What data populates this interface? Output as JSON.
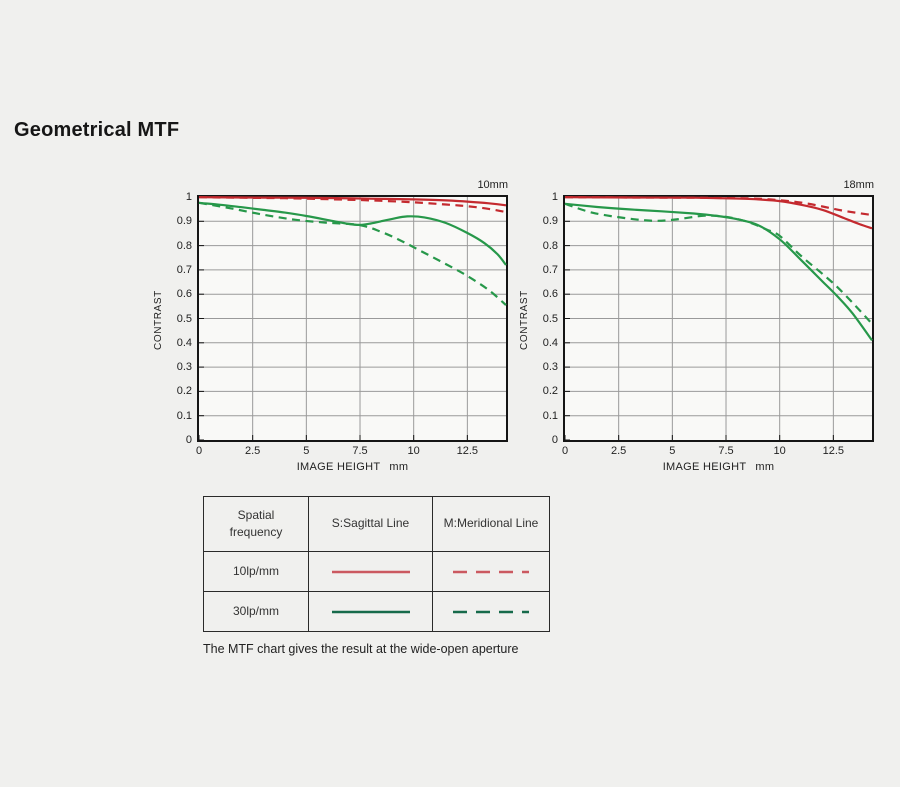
{
  "page": {
    "title": "Geometrical MTF",
    "note": "The MTF chart gives the result at the wide-open aperture"
  },
  "colors": {
    "red": "#c42a2f",
    "green": "#27984a",
    "legend_red": "#cb5960",
    "legend_green": "#166a4a",
    "grid": "#9a9a9a",
    "border": "#151515",
    "plot_bg": "#f9f9f7"
  },
  "legend": {
    "headers": [
      "Spatial frequency",
      "S:Sagittal Line",
      "M:Meridional Line"
    ],
    "rows": [
      {
        "label": "10lp/mm",
        "color": "legend_red"
      },
      {
        "label": "30lp/mm",
        "color": "legend_green"
      }
    ]
  },
  "chart_data": [
    {
      "type": "line",
      "title": "10mm",
      "xlabel": "IMAGE HEIGHT",
      "x_unit": "mm",
      "ylabel": "CONTRAST",
      "xlim": [
        0,
        14.3
      ],
      "ylim": [
        0,
        1
      ],
      "grid": true,
      "x_ticks": [
        "0",
        "2.5",
        "5",
        "7.5",
        "10",
        "12.5"
      ],
      "y_ticks": [
        "1",
        "0.9",
        "0.8",
        "0.7",
        "0.6",
        "0.5",
        "0.4",
        "0.3",
        "0.2",
        "0.1",
        "0"
      ],
      "series": [
        {
          "id": "10lpmm-sagittal",
          "name": "10lp/mm S (Sagittal)",
          "color": "red",
          "style": "solid",
          "points": [
            [
              0,
              0.999
            ],
            [
              2,
              0.998
            ],
            [
              4,
              0.997
            ],
            [
              6,
              0.996
            ],
            [
              8,
              0.993
            ],
            [
              10,
              0.99
            ],
            [
              11.5,
              0.986
            ],
            [
              12.5,
              0.981
            ],
            [
              13.5,
              0.974
            ],
            [
              14.3,
              0.966
            ]
          ]
        },
        {
          "id": "10lpmm-meridional",
          "name": "10lp/mm M (Meridional)",
          "color": "red",
          "style": "dashed",
          "points": [
            [
              0,
              0.999
            ],
            [
              2,
              0.997
            ],
            [
              4,
              0.995
            ],
            [
              6,
              0.991
            ],
            [
              8,
              0.986
            ],
            [
              10,
              0.978
            ],
            [
              11.5,
              0.969
            ],
            [
              12.5,
              0.962
            ],
            [
              13.5,
              0.951
            ],
            [
              14.3,
              0.938
            ]
          ]
        },
        {
          "id": "30lpmm-sagittal",
          "name": "30lp/mm S (Sagittal)",
          "color": "green",
          "style": "solid",
          "points": [
            [
              0,
              0.976
            ],
            [
              1,
              0.968
            ],
            [
              2,
              0.958
            ],
            [
              3,
              0.947
            ],
            [
              4,
              0.936
            ],
            [
              5,
              0.922
            ],
            [
              6,
              0.905
            ],
            [
              7,
              0.889
            ],
            [
              7.5,
              0.885
            ],
            [
              8,
              0.891
            ],
            [
              9,
              0.91
            ],
            [
              9.7,
              0.92
            ],
            [
              10.5,
              0.916
            ],
            [
              11.5,
              0.893
            ],
            [
              12.5,
              0.852
            ],
            [
              13.3,
              0.81
            ],
            [
              13.9,
              0.765
            ],
            [
              14.3,
              0.72
            ]
          ]
        },
        {
          "id": "30lpmm-meridional",
          "name": "30lp/mm M (Meridional)",
          "color": "green",
          "style": "dashed",
          "points": [
            [
              0,
              0.976
            ],
            [
              1.5,
              0.953
            ],
            [
              3,
              0.927
            ],
            [
              4.5,
              0.906
            ],
            [
              6,
              0.894
            ],
            [
              7.5,
              0.884
            ],
            [
              8.5,
              0.856
            ],
            [
              9.5,
              0.816
            ],
            [
              10.5,
              0.77
            ],
            [
              11.5,
              0.724
            ],
            [
              12.5,
              0.675
            ],
            [
              13.5,
              0.617
            ],
            [
              14.3,
              0.555
            ]
          ]
        }
      ]
    },
    {
      "type": "line",
      "title": "18mm",
      "xlabel": "IMAGE HEIGHT",
      "x_unit": "mm",
      "ylabel": "CONTRAST",
      "xlim": [
        0,
        14.3
      ],
      "ylim": [
        0,
        1
      ],
      "grid": true,
      "x_ticks": [
        "0",
        "2.5",
        "5",
        "7.5",
        "10",
        "12.5"
      ],
      "y_ticks": [
        "1",
        "0.9",
        "0.8",
        "0.7",
        "0.6",
        "0.5",
        "0.4",
        "0.3",
        "0.2",
        "0.1",
        "0"
      ],
      "series": [
        {
          "id": "10lpmm-sagittal",
          "name": "10lp/mm S (Sagittal)",
          "color": "red",
          "style": "solid",
          "points": [
            [
              0,
              0.999
            ],
            [
              3,
              0.998
            ],
            [
              6,
              0.997
            ],
            [
              8,
              0.994
            ],
            [
              9,
              0.99
            ],
            [
              10,
              0.983
            ],
            [
              11,
              0.968
            ],
            [
              12,
              0.947
            ],
            [
              13,
              0.913
            ],
            [
              13.7,
              0.889
            ],
            [
              14.3,
              0.871
            ]
          ]
        },
        {
          "id": "10lpmm-meridional",
          "name": "10lp/mm M (Meridional)",
          "color": "red",
          "style": "dashed",
          "points": [
            [
              0,
              0.999
            ],
            [
              3,
              0.998
            ],
            [
              6,
              0.997
            ],
            [
              8,
              0.995
            ],
            [
              9,
              0.993
            ],
            [
              10,
              0.987
            ],
            [
              11,
              0.977
            ],
            [
              12,
              0.961
            ],
            [
              13,
              0.943
            ],
            [
              14.3,
              0.926
            ]
          ]
        },
        {
          "id": "30lpmm-sagittal",
          "name": "30lp/mm S (Sagittal)",
          "color": "green",
          "style": "solid",
          "points": [
            [
              0,
              0.972
            ],
            [
              1.5,
              0.959
            ],
            [
              3,
              0.949
            ],
            [
              4.5,
              0.941
            ],
            [
              6,
              0.932
            ],
            [
              7,
              0.923
            ],
            [
              8,
              0.909
            ],
            [
              9,
              0.884
            ],
            [
              10,
              0.826
            ],
            [
              11,
              0.74
            ],
            [
              12,
              0.652
            ],
            [
              12.7,
              0.59
            ],
            [
              13.4,
              0.52
            ],
            [
              14.3,
              0.41
            ]
          ]
        },
        {
          "id": "30lpmm-meridional",
          "name": "30lp/mm M (Meridional)",
          "color": "green",
          "style": "dashed",
          "points": [
            [
              0,
              0.972
            ],
            [
              1.3,
              0.935
            ],
            [
              2.9,
              0.912
            ],
            [
              4.2,
              0.902
            ],
            [
              5.2,
              0.908
            ],
            [
              6.5,
              0.923
            ],
            [
              7.5,
              0.918
            ],
            [
              8.5,
              0.898
            ],
            [
              9.4,
              0.866
            ],
            [
              10,
              0.84
            ],
            [
              11,
              0.757
            ],
            [
              12,
              0.683
            ],
            [
              12.7,
              0.628
            ],
            [
              13.5,
              0.555
            ],
            [
              14.3,
              0.478
            ]
          ]
        }
      ]
    }
  ]
}
